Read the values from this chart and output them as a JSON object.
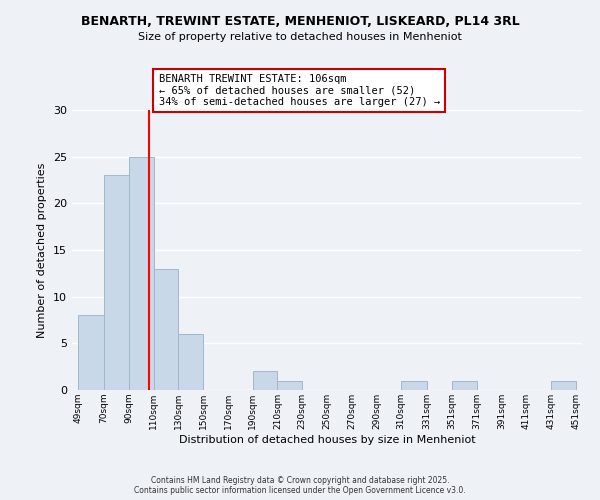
{
  "title1": "BENARTH, TREWINT ESTATE, MENHENIOT, LISKEARD, PL14 3RL",
  "title2": "Size of property relative to detached houses in Menheniot",
  "xlabel": "Distribution of detached houses by size in Menheniot",
  "ylabel": "Number of detached properties",
  "bar_edges": [
    49,
    70,
    90,
    110,
    130,
    150,
    170,
    190,
    210,
    230,
    250,
    270,
    290,
    310,
    331,
    351,
    371,
    391,
    411,
    431,
    451
  ],
  "bar_values": [
    8,
    23,
    25,
    13,
    6,
    0,
    0,
    2,
    1,
    0,
    0,
    0,
    0,
    1,
    0,
    1,
    0,
    0,
    0,
    1
  ],
  "bar_color": "#c8d8e8",
  "bar_edgecolor": "#a0b8cc",
  "vline_x": 106,
  "vline_color": "red",
  "annotation_title": "BENARTH TREWINT ESTATE: 106sqm",
  "annotation_line1": "← 65% of detached houses are smaller (52)",
  "annotation_line2": "34% of semi-detached houses are larger (27) →",
  "ylim": [
    0,
    30
  ],
  "yticks": [
    0,
    5,
    10,
    15,
    20,
    25,
    30
  ],
  "tick_labels": [
    "49sqm",
    "70sqm",
    "90sqm",
    "110sqm",
    "130sqm",
    "150sqm",
    "170sqm",
    "190sqm",
    "210sqm",
    "230sqm",
    "250sqm",
    "270sqm",
    "290sqm",
    "310sqm",
    "331sqm",
    "351sqm",
    "371sqm",
    "391sqm",
    "411sqm",
    "431sqm",
    "451sqm"
  ],
  "background_color": "#eef2f7",
  "grid_color": "#ffffff",
  "footer1": "Contains HM Land Registry data © Crown copyright and database right 2025.",
  "footer2": "Contains public sector information licensed under the Open Government Licence v3.0."
}
